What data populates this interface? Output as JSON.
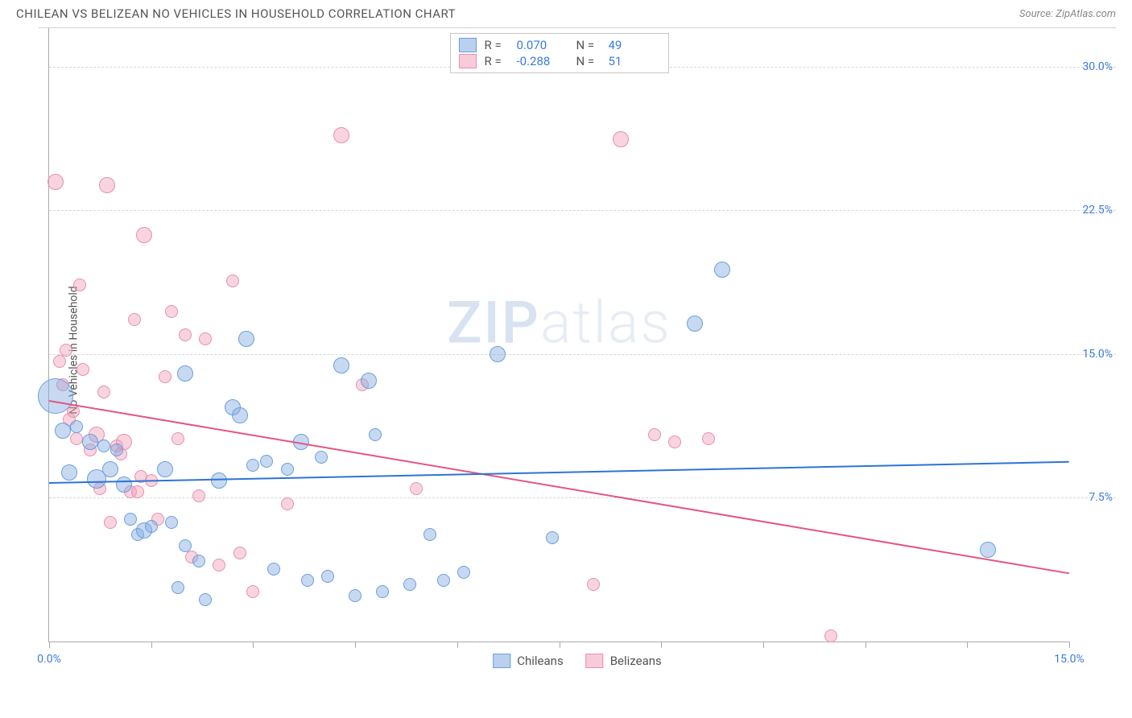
{
  "header": {
    "title": "CHILEAN VS BELIZEAN NO VEHICLES IN HOUSEHOLD CORRELATION CHART",
    "source_label": "Source: ZipAtlas.com"
  },
  "axes": {
    "y_label": "No Vehicles in Household",
    "x_min": 0,
    "x_max": 15,
    "y_min": 0,
    "y_max": 32,
    "x_ticks": [
      0,
      1.5,
      3.0,
      4.5,
      6.0,
      7.5,
      9.0,
      10.5,
      12.0,
      13.5,
      15.0
    ],
    "x_tick_labels": {
      "0": "0.0%",
      "15": "15.0%"
    },
    "y_gridlines": [
      7.5,
      15.0,
      22.5,
      30.0
    ],
    "y_tick_labels": {
      "7.5": "7.5%",
      "15.0": "15.0%",
      "22.5": "22.5%",
      "30.0": "30.0%"
    }
  },
  "series": {
    "chileans": {
      "label": "Chileans",
      "fill": "rgba(130,170,225,0.45)",
      "stroke": "#6a9fe0",
      "line_color": "#2d74d6",
      "R": "0.070",
      "N": "49",
      "trend": {
        "y_at_xmin": 8.3,
        "y_at_xmax": 9.4
      },
      "points": [
        {
          "x": 0.1,
          "y": 12.8,
          "r": 22
        },
        {
          "x": 0.2,
          "y": 11.0,
          "r": 10
        },
        {
          "x": 0.3,
          "y": 8.8,
          "r": 10
        },
        {
          "x": 0.4,
          "y": 11.2,
          "r": 8
        },
        {
          "x": 0.6,
          "y": 10.4,
          "r": 10
        },
        {
          "x": 0.7,
          "y": 8.5,
          "r": 12
        },
        {
          "x": 0.8,
          "y": 10.2,
          "r": 8
        },
        {
          "x": 0.9,
          "y": 9.0,
          "r": 10
        },
        {
          "x": 1.0,
          "y": 10.0,
          "r": 8
        },
        {
          "x": 1.1,
          "y": 8.2,
          "r": 10
        },
        {
          "x": 1.2,
          "y": 6.4,
          "r": 8
        },
        {
          "x": 1.3,
          "y": 5.6,
          "r": 8
        },
        {
          "x": 1.4,
          "y": 5.8,
          "r": 10
        },
        {
          "x": 1.5,
          "y": 6.0,
          "r": 8
        },
        {
          "x": 1.7,
          "y": 9.0,
          "r": 10
        },
        {
          "x": 1.8,
          "y": 6.2,
          "r": 8
        },
        {
          "x": 1.9,
          "y": 2.8,
          "r": 8
        },
        {
          "x": 2.0,
          "y": 14.0,
          "r": 10
        },
        {
          "x": 2.0,
          "y": 5.0,
          "r": 8
        },
        {
          "x": 2.2,
          "y": 4.2,
          "r": 8
        },
        {
          "x": 2.3,
          "y": 2.2,
          "r": 8
        },
        {
          "x": 2.5,
          "y": 8.4,
          "r": 10
        },
        {
          "x": 2.7,
          "y": 12.2,
          "r": 10
        },
        {
          "x": 2.8,
          "y": 11.8,
          "r": 10
        },
        {
          "x": 2.9,
          "y": 15.8,
          "r": 10
        },
        {
          "x": 3.0,
          "y": 9.2,
          "r": 8
        },
        {
          "x": 3.2,
          "y": 9.4,
          "r": 8
        },
        {
          "x": 3.3,
          "y": 3.8,
          "r": 8
        },
        {
          "x": 3.5,
          "y": 9.0,
          "r": 8
        },
        {
          "x": 3.7,
          "y": 10.4,
          "r": 10
        },
        {
          "x": 3.8,
          "y": 3.2,
          "r": 8
        },
        {
          "x": 4.0,
          "y": 9.6,
          "r": 8
        },
        {
          "x": 4.1,
          "y": 3.4,
          "r": 8
        },
        {
          "x": 4.3,
          "y": 14.4,
          "r": 10
        },
        {
          "x": 4.5,
          "y": 2.4,
          "r": 8
        },
        {
          "x": 4.7,
          "y": 13.6,
          "r": 10
        },
        {
          "x": 4.8,
          "y": 10.8,
          "r": 8
        },
        {
          "x": 4.9,
          "y": 2.6,
          "r": 8
        },
        {
          "x": 5.3,
          "y": 3.0,
          "r": 8
        },
        {
          "x": 5.6,
          "y": 5.6,
          "r": 8
        },
        {
          "x": 5.8,
          "y": 3.2,
          "r": 8
        },
        {
          "x": 6.1,
          "y": 3.6,
          "r": 8
        },
        {
          "x": 6.6,
          "y": 15.0,
          "r": 10
        },
        {
          "x": 7.4,
          "y": 5.4,
          "r": 8
        },
        {
          "x": 9.5,
          "y": 16.6,
          "r": 10
        },
        {
          "x": 9.9,
          "y": 19.4,
          "r": 10
        },
        {
          "x": 13.8,
          "y": 4.8,
          "r": 10
        }
      ]
    },
    "belizeans": {
      "label": "Belizeans",
      "fill": "rgba(240,160,185,0.45)",
      "stroke": "#e88fb0",
      "line_color": "#e4557f",
      "R": "-0.288",
      "N": "51",
      "trend": {
        "y_at_xmin": 12.6,
        "y_at_xmax": 3.6
      },
      "points": [
        {
          "x": 0.1,
          "y": 24.0,
          "r": 10
        },
        {
          "x": 0.15,
          "y": 14.6,
          "r": 8
        },
        {
          "x": 0.2,
          "y": 13.4,
          "r": 8
        },
        {
          "x": 0.25,
          "y": 15.2,
          "r": 8
        },
        {
          "x": 0.3,
          "y": 11.6,
          "r": 8
        },
        {
          "x": 0.35,
          "y": 12.0,
          "r": 8
        },
        {
          "x": 0.4,
          "y": 10.6,
          "r": 8
        },
        {
          "x": 0.45,
          "y": 18.6,
          "r": 8
        },
        {
          "x": 0.5,
          "y": 14.2,
          "r": 8
        },
        {
          "x": 0.6,
          "y": 10.0,
          "r": 8
        },
        {
          "x": 0.7,
          "y": 10.8,
          "r": 10
        },
        {
          "x": 0.75,
          "y": 8.0,
          "r": 8
        },
        {
          "x": 0.8,
          "y": 13.0,
          "r": 8
        },
        {
          "x": 0.85,
          "y": 23.8,
          "r": 10
        },
        {
          "x": 0.9,
          "y": 6.2,
          "r": 8
        },
        {
          "x": 1.0,
          "y": 10.2,
          "r": 8
        },
        {
          "x": 1.05,
          "y": 9.8,
          "r": 8
        },
        {
          "x": 1.1,
          "y": 10.4,
          "r": 10
        },
        {
          "x": 1.2,
          "y": 7.8,
          "r": 8
        },
        {
          "x": 1.25,
          "y": 16.8,
          "r": 8
        },
        {
          "x": 1.3,
          "y": 7.8,
          "r": 8
        },
        {
          "x": 1.35,
          "y": 8.6,
          "r": 8
        },
        {
          "x": 1.4,
          "y": 21.2,
          "r": 10
        },
        {
          "x": 1.5,
          "y": 8.4,
          "r": 8
        },
        {
          "x": 1.6,
          "y": 6.4,
          "r": 8
        },
        {
          "x": 1.7,
          "y": 13.8,
          "r": 8
        },
        {
          "x": 1.8,
          "y": 17.2,
          "r": 8
        },
        {
          "x": 1.9,
          "y": 10.6,
          "r": 8
        },
        {
          "x": 2.0,
          "y": 16.0,
          "r": 8
        },
        {
          "x": 2.1,
          "y": 4.4,
          "r": 8
        },
        {
          "x": 2.2,
          "y": 7.6,
          "r": 8
        },
        {
          "x": 2.3,
          "y": 15.8,
          "r": 8
        },
        {
          "x": 2.5,
          "y": 4.0,
          "r": 8
        },
        {
          "x": 2.7,
          "y": 18.8,
          "r": 8
        },
        {
          "x": 2.8,
          "y": 4.6,
          "r": 8
        },
        {
          "x": 3.0,
          "y": 2.6,
          "r": 8
        },
        {
          "x": 3.5,
          "y": 7.2,
          "r": 8
        },
        {
          "x": 4.3,
          "y": 26.4,
          "r": 10
        },
        {
          "x": 4.6,
          "y": 13.4,
          "r": 8
        },
        {
          "x": 5.4,
          "y": 8.0,
          "r": 8
        },
        {
          "x": 8.0,
          "y": 3.0,
          "r": 8
        },
        {
          "x": 8.4,
          "y": 26.2,
          "r": 10
        },
        {
          "x": 8.9,
          "y": 10.8,
          "r": 8
        },
        {
          "x": 9.2,
          "y": 10.4,
          "r": 8
        },
        {
          "x": 9.7,
          "y": 10.6,
          "r": 8
        },
        {
          "x": 11.5,
          "y": 0.3,
          "r": 8
        }
      ]
    }
  },
  "legend_bottom": [
    "Chileans",
    "Belizeans"
  ],
  "watermark": {
    "a": "ZIP",
    "b": "atlas"
  },
  "colors": {
    "blue_fill": "rgba(130,170,225,0.55)",
    "blue_border": "#6a9fe0",
    "pink_fill": "rgba(240,160,185,0.55)",
    "pink_border": "#e88fb0",
    "tick_text": "#3b7dd8"
  }
}
